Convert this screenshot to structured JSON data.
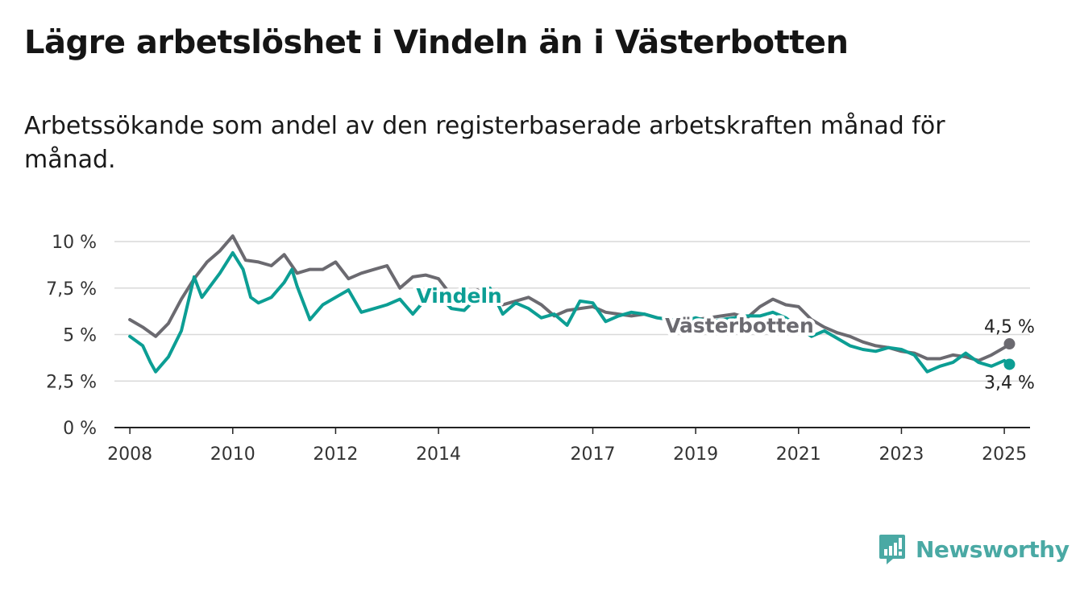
{
  "header": {
    "title": "Lägre arbetslöshet i Vindeln än i Västerbotten",
    "subtitle": "Arbetssökande som andel av den registerbaserade arbetskraften månad för månad."
  },
  "brand": {
    "name": "Newsworthy",
    "icon": "newsworthy-logo-icon",
    "color": "#4aa9a4"
  },
  "chart_data": {
    "type": "line",
    "title": "Lägre arbetslöshet i Vindeln än i Västerbotten",
    "subtitle": "Arbetssökande som andel av den registerbaserade arbetskraften månad för månad.",
    "xlabel": "",
    "ylabel": "",
    "xlim": [
      2007.7,
      2025.5
    ],
    "ylim": [
      0,
      10
    ],
    "x_ticks": [
      2008,
      2010,
      2012,
      2014,
      2017,
      2019,
      2021,
      2023,
      2025
    ],
    "x_tick_labels": [
      "2008",
      "2010",
      "2012",
      "2014",
      "2017",
      "2019",
      "2021",
      "2023",
      "2025"
    ],
    "y_ticks": [
      0,
      2.5,
      5,
      7.5,
      10
    ],
    "y_tick_labels": [
      "0 %",
      "2,5 %",
      "5 %",
      "7,5 %",
      "10 %"
    ],
    "grid": true,
    "series": [
      {
        "name": "Västerbotten",
        "color": "#6b6a70",
        "end_label": "4,5 %",
        "x": [
          2008.0,
          2008.25,
          2008.5,
          2008.75,
          2009.0,
          2009.25,
          2009.5,
          2009.75,
          2010.0,
          2010.25,
          2010.5,
          2010.75,
          2011.0,
          2011.25,
          2011.5,
          2011.75,
          2012.0,
          2012.25,
          2012.5,
          2012.75,
          2013.0,
          2013.25,
          2013.5,
          2013.75,
          2014.0,
          2014.25,
          2014.5,
          2014.75,
          2015.0,
          2015.25,
          2015.5,
          2015.75,
          2016.0,
          2016.25,
          2016.5,
          2016.75,
          2017.0,
          2017.25,
          2017.5,
          2017.75,
          2018.0,
          2018.25,
          2018.5,
          2018.75,
          2019.0,
          2019.25,
          2019.5,
          2019.75,
          2020.0,
          2020.25,
          2020.5,
          2020.75,
          2021.0,
          2021.25,
          2021.5,
          2021.75,
          2022.0,
          2022.25,
          2022.5,
          2022.75,
          2023.0,
          2023.25,
          2023.5,
          2023.75,
          2024.0,
          2024.25,
          2024.5,
          2024.75,
          2025.0,
          2025.1
        ],
        "values": [
          5.8,
          5.4,
          4.9,
          5.6,
          6.9,
          8.0,
          8.9,
          9.5,
          10.3,
          9.0,
          8.9,
          8.7,
          9.3,
          8.3,
          8.5,
          8.5,
          8.9,
          8.0,
          8.3,
          8.5,
          8.7,
          7.5,
          8.1,
          8.2,
          8.0,
          7.1,
          7.0,
          7.4,
          7.1,
          6.6,
          6.8,
          7.0,
          6.6,
          6.0,
          6.3,
          6.4,
          6.5,
          6.2,
          6.1,
          6.0,
          6.1,
          5.9,
          5.8,
          5.6,
          5.8,
          5.9,
          6.0,
          6.1,
          5.9,
          6.5,
          6.9,
          6.6,
          6.5,
          5.8,
          5.4,
          5.1,
          4.9,
          4.6,
          4.4,
          4.3,
          4.1,
          4.0,
          3.7,
          3.7,
          3.9,
          3.8,
          3.6,
          3.9,
          4.3,
          4.5
        ]
      },
      {
        "name": "Vindeln",
        "color": "#0c9e94",
        "end_label": "3,4 %",
        "x": [
          2008.0,
          2008.25,
          2008.4,
          2008.5,
          2008.75,
          2009.0,
          2009.25,
          2009.4,
          2009.75,
          2010.0,
          2010.2,
          2010.35,
          2010.5,
          2010.75,
          2011.0,
          2011.15,
          2011.25,
          2011.5,
          2011.75,
          2012.0,
          2012.25,
          2012.5,
          2012.75,
          2013.0,
          2013.25,
          2013.5,
          2013.75,
          2014.0,
          2014.25,
          2014.5,
          2014.75,
          2015.0,
          2015.25,
          2015.5,
          2015.75,
          2016.0,
          2016.25,
          2016.5,
          2016.75,
          2017.0,
          2017.25,
          2017.5,
          2017.75,
          2018.0,
          2018.25,
          2018.5,
          2018.75,
          2019.0,
          2019.25,
          2019.5,
          2019.75,
          2020.0,
          2020.25,
          2020.5,
          2020.75,
          2021.0,
          2021.25,
          2021.5,
          2021.75,
          2022.0,
          2022.25,
          2022.5,
          2022.75,
          2023.0,
          2023.25,
          2023.5,
          2023.75,
          2024.0,
          2024.25,
          2024.5,
          2024.75,
          2025.0,
          2025.1
        ],
        "values": [
          4.9,
          4.4,
          3.5,
          3.0,
          3.8,
          5.2,
          8.1,
          7.0,
          8.3,
          9.4,
          8.5,
          7.0,
          6.7,
          7.0,
          7.8,
          8.5,
          7.6,
          5.8,
          6.6,
          7.0,
          7.4,
          6.2,
          6.4,
          6.6,
          6.9,
          6.1,
          6.9,
          7.1,
          6.4,
          6.3,
          7.0,
          7.5,
          6.1,
          6.7,
          6.4,
          5.9,
          6.1,
          5.5,
          6.8,
          6.7,
          5.7,
          6.0,
          6.2,
          6.1,
          5.9,
          5.8,
          5.7,
          5.9,
          5.7,
          5.8,
          5.9,
          6.0,
          6.0,
          6.2,
          5.9,
          5.4,
          4.9,
          5.2,
          4.8,
          4.4,
          4.2,
          4.1,
          4.3,
          4.2,
          3.9,
          3.0,
          3.3,
          3.5,
          4.0,
          3.5,
          3.3,
          3.6,
          3.4
        ]
      }
    ],
    "series_labels": [
      {
        "text": "Vindeln",
        "x": 2014.4,
        "y": 6.7,
        "series": "Vindeln"
      },
      {
        "text": "Västerbotten",
        "x": 2019.85,
        "y": 5.1,
        "series": "Västerbotten"
      }
    ]
  }
}
